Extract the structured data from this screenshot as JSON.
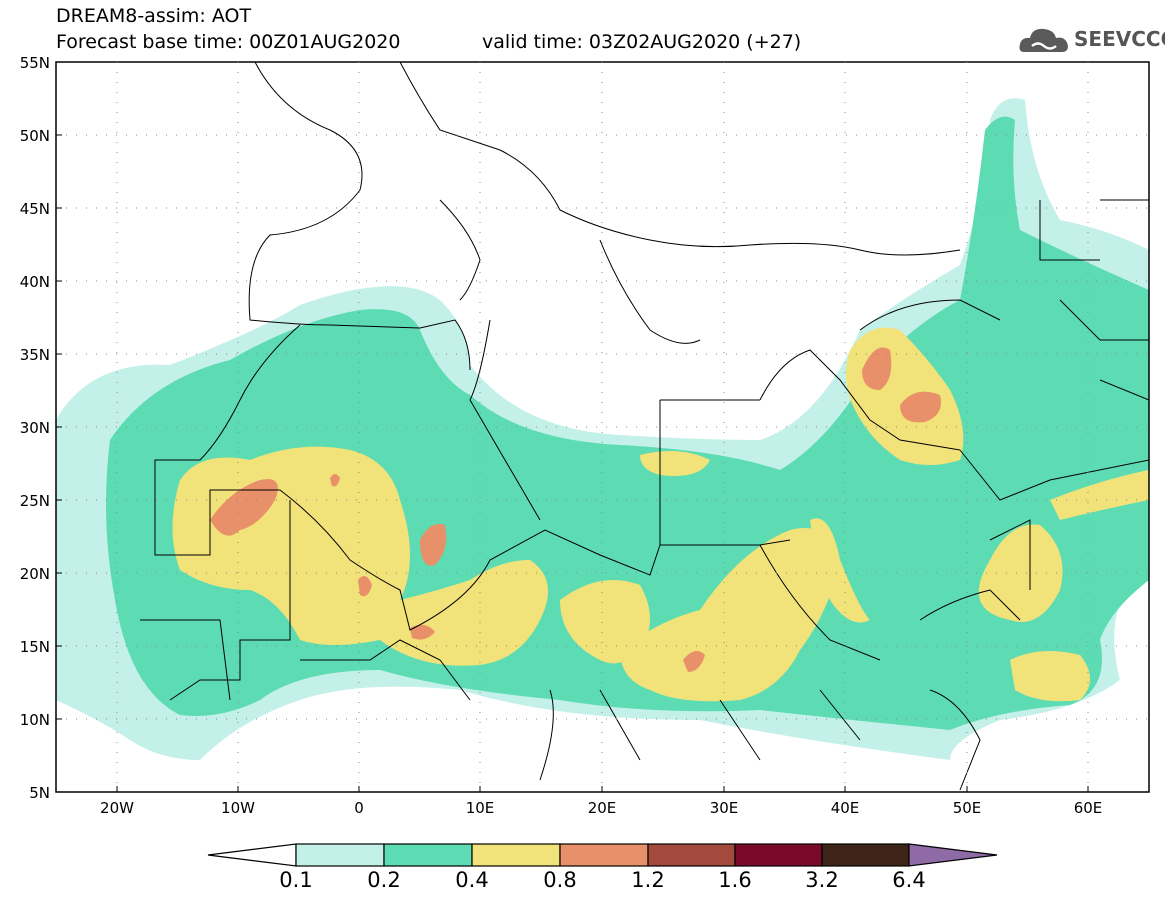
{
  "header": {
    "model_line": "DREAM8-assim: AOT",
    "base_time": "Forecast base time: 00Z01AUG2020",
    "valid_time": "valid time: 03Z02AUG2020 (+27)"
  },
  "logo": {
    "text": "SEEVCCC",
    "icon": "cloud-icon"
  },
  "map": {
    "lat_labels": [
      "55N",
      "50N",
      "45N",
      "40N",
      "35N",
      "30N",
      "25N",
      "20N",
      "15N",
      "10N",
      "5N"
    ],
    "lon_labels": [
      "20W",
      "10W",
      "0",
      "10E",
      "20E",
      "30E",
      "40E",
      "50E",
      "60E"
    ]
  },
  "colorbar": {
    "levels": [
      "0.1",
      "0.2",
      "0.4",
      "0.8",
      "1.2",
      "1.6",
      "3.2",
      "6.4"
    ],
    "colors": [
      "#c3f0e8",
      "#5ddcb4",
      "#f2e27a",
      "#e8906a",
      "#a24a3e",
      "#7a0a2a",
      "#3e2418",
      "#8f6aa6"
    ],
    "under_color": "#ffffff"
  }
}
